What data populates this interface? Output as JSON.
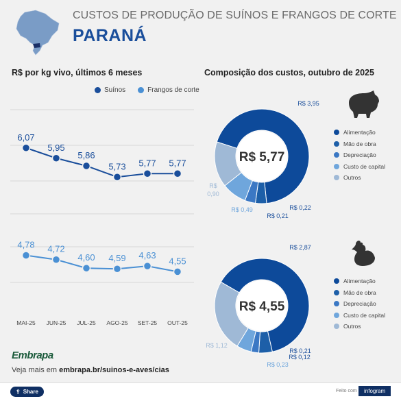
{
  "header": {
    "title_line1": "CUSTOS DE PRODUÇÃO DE SUÍNOS E FRANGOS DE CORTE",
    "title_line2": "PARANÁ"
  },
  "left_subtitle": "R$ por kg vivo, últimos 6 meses",
  "right_subtitle": "Composição dos custos, outubro de 2025",
  "legend": {
    "suinos": "Suínos",
    "frangos": "Frangos de corte"
  },
  "colors": {
    "suinos": "#1a4e9b",
    "frangos": "#4a90d4",
    "alimentacao": "#0d4a9a",
    "mao_de_obra": "#1d5fa8",
    "depreciacao": "#3b78c4",
    "custo_capital": "#6fa6dc",
    "outros": "#9fb9d6"
  },
  "chart_data": [
    {
      "type": "line",
      "categories": [
        "MAI-25",
        "JUN-25",
        "JUL-25",
        "AGO-25",
        "SET-25",
        "OUT-25"
      ],
      "series": [
        {
          "name": "Suínos",
          "values": [
            6.07,
            5.95,
            5.86,
            5.73,
            5.77,
            5.77
          ],
          "labels": [
            "6,07",
            "5,95",
            "5,86",
            "5,73",
            "5,77",
            "5,77"
          ]
        },
        {
          "name": "Frangos de corte",
          "values": [
            4.78,
            4.72,
            4.6,
            4.59,
            4.63,
            4.55
          ],
          "labels": [
            "4,78",
            "4,72",
            "4,60",
            "4,59",
            "4,63",
            "4,55"
          ]
        }
      ],
      "title": "R$ por kg vivo, últimos 6 meses",
      "legend": "top-right",
      "grid": true
    },
    {
      "type": "pie",
      "center_label": "R$ 5,77",
      "categories": [
        "Alimentação",
        "Mão de obra",
        "Depreciação",
        "Custo de capital",
        "Outros"
      ],
      "values": [
        3.95,
        0.22,
        0.21,
        0.49,
        0.9
      ],
      "labels": [
        "R$ 3,95",
        "R$ 0,22",
        "R$ 0,21",
        "R$ 0,49",
        "R$ 0,90"
      ],
      "icon": "pig-icon"
    },
    {
      "type": "pie",
      "center_label": "R$ 4,55",
      "categories": [
        "Alimentação",
        "Mão de obra",
        "Depreciação",
        "Custo de capital",
        "Outros"
      ],
      "values": [
        2.87,
        0.21,
        0.12,
        0.23,
        1.12
      ],
      "labels": [
        "R$ 2,87",
        "R$ 0,21",
        "R$ 0,12",
        "R$ 0,23",
        "R$ 1,12"
      ],
      "icon": "chicken-icon"
    }
  ],
  "footer": {
    "logo": "Embrapa",
    "source_prefix": "Veja mais em ",
    "source_link": "embrapa.br/suinos-e-aves/cias",
    "share_label": "Share",
    "made_with": "Feito com",
    "infogram": "infogram"
  }
}
